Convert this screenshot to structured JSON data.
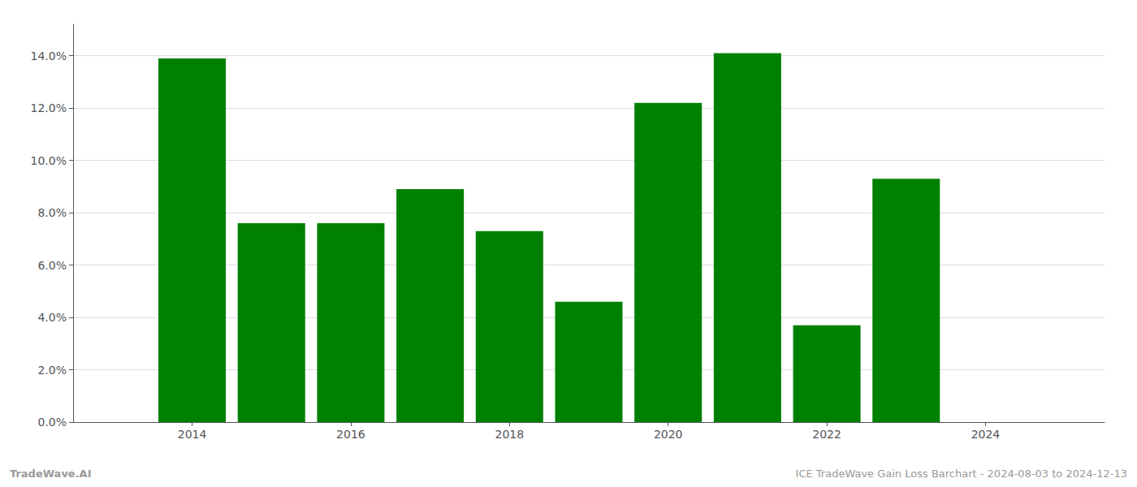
{
  "chart_data": {
    "type": "bar",
    "x": [
      2014,
      2015,
      2016,
      2017,
      2018,
      2019,
      2020,
      2021,
      2022,
      2023
    ],
    "values": [
      0.139,
      0.076,
      0.076,
      0.089,
      0.073,
      0.046,
      0.122,
      0.141,
      0.037,
      0.093
    ],
    "color": "#008000",
    "xlim": [
      2012.5,
      2025.5
    ],
    "xticks": [
      2014,
      2016,
      2018,
      2020,
      2022,
      2024
    ],
    "ylim": [
      0,
      0.152
    ],
    "yticks": [
      {
        "value": 0.0,
        "label": "0.0%"
      },
      {
        "value": 0.02,
        "label": "2.0%"
      },
      {
        "value": 0.04,
        "label": "4.0%"
      },
      {
        "value": 0.06,
        "label": "6.0%"
      },
      {
        "value": 0.08,
        "label": "8.0%"
      },
      {
        "value": 0.1,
        "label": "10.0%"
      },
      {
        "value": 0.12,
        "label": "12.0%"
      },
      {
        "value": 0.14,
        "label": "14.0%"
      }
    ],
    "grid": true,
    "annotations": [
      "TradeWave.AI",
      "ICE TradeWave Gain Loss Barchart - 2024-08-03 to 2024-12-13"
    ]
  }
}
